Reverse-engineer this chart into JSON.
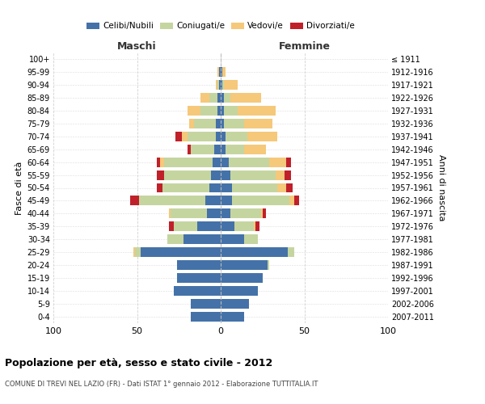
{
  "age_groups": [
    "0-4",
    "5-9",
    "10-14",
    "15-19",
    "20-24",
    "25-29",
    "30-34",
    "35-39",
    "40-44",
    "45-49",
    "50-54",
    "55-59",
    "60-64",
    "65-69",
    "70-74",
    "75-79",
    "80-84",
    "85-89",
    "90-94",
    "95-99",
    "100+"
  ],
  "birth_years": [
    "2007-2011",
    "2002-2006",
    "1997-2001",
    "1992-1996",
    "1987-1991",
    "1982-1986",
    "1977-1981",
    "1972-1976",
    "1967-1971",
    "1962-1966",
    "1957-1961",
    "1952-1956",
    "1947-1951",
    "1942-1946",
    "1937-1941",
    "1932-1936",
    "1927-1931",
    "1922-1926",
    "1917-1921",
    "1912-1916",
    "≤ 1911"
  ],
  "maschi": {
    "celibi": [
      18,
      18,
      28,
      26,
      26,
      48,
      22,
      14,
      8,
      9,
      7,
      6,
      5,
      4,
      3,
      3,
      2,
      2,
      1,
      1,
      0
    ],
    "coniugati": [
      0,
      0,
      0,
      0,
      0,
      3,
      10,
      14,
      22,
      40,
      28,
      28,
      29,
      14,
      17,
      13,
      10,
      5,
      1,
      0,
      0
    ],
    "vedovi": [
      0,
      0,
      0,
      0,
      0,
      1,
      0,
      0,
      1,
      0,
      0,
      0,
      2,
      0,
      3,
      3,
      8,
      5,
      1,
      1,
      0
    ],
    "divorziati": [
      0,
      0,
      0,
      0,
      0,
      0,
      0,
      3,
      0,
      5,
      3,
      4,
      2,
      2,
      4,
      0,
      0,
      0,
      0,
      0,
      0
    ]
  },
  "femmine": {
    "nubili": [
      14,
      17,
      22,
      25,
      28,
      40,
      14,
      8,
      6,
      7,
      7,
      6,
      5,
      3,
      3,
      2,
      2,
      2,
      1,
      1,
      0
    ],
    "coniugate": [
      0,
      0,
      0,
      0,
      1,
      4,
      8,
      12,
      18,
      34,
      27,
      27,
      24,
      11,
      13,
      12,
      8,
      4,
      1,
      0,
      0
    ],
    "vedove": [
      0,
      0,
      0,
      0,
      0,
      0,
      0,
      1,
      1,
      3,
      5,
      5,
      10,
      13,
      18,
      17,
      23,
      18,
      8,
      2,
      0
    ],
    "divorziate": [
      0,
      0,
      0,
      0,
      0,
      0,
      0,
      2,
      2,
      3,
      4,
      4,
      3,
      0,
      0,
      0,
      0,
      0,
      0,
      0,
      0
    ]
  },
  "colors": {
    "celibi": "#4472a8",
    "coniugati": "#c5d5a0",
    "vedovi": "#f5c87a",
    "divorziati": "#c0202a"
  },
  "title": "Popolazione per età, sesso e stato civile - 2012",
  "subtitle": "COMUNE DI TREVI NEL LAZIO (FR) - Dati ISTAT 1° gennaio 2012 - Elaborazione TUTTITALIA.IT",
  "xlabel_left": "Maschi",
  "xlabel_right": "Femmine",
  "ylabel_left": "Fasce di età",
  "ylabel_right": "Anni di nascita",
  "legend_labels": [
    "Celibi/Nubili",
    "Coniugati/e",
    "Vedovi/e",
    "Divorziati/e"
  ],
  "xlim": 100,
  "background_color": "#ffffff",
  "grid_color": "#cccccc"
}
